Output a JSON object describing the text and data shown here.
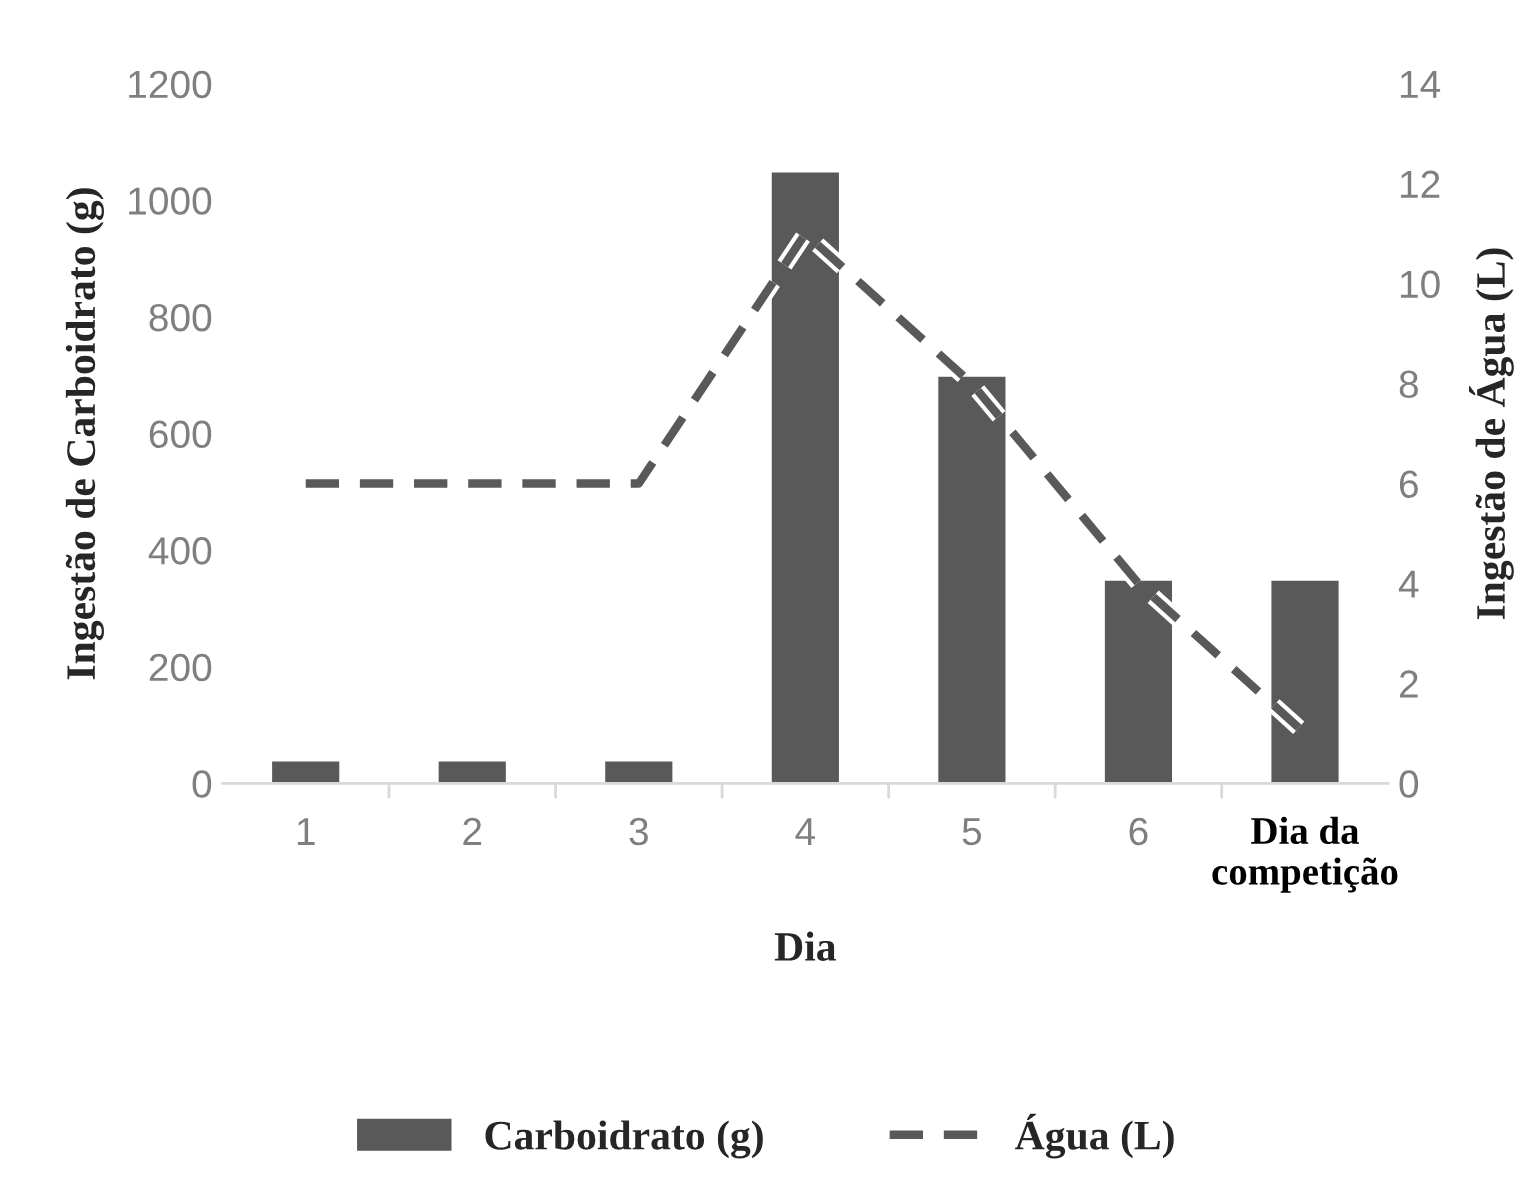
{
  "chart_data": {
    "type": "bar",
    "xlabel": "Dia",
    "ylabel": "Ingestão de Carboidrato (g)",
    "y2label": "Ingestão de Água (L)",
    "categories": [
      "1",
      "2",
      "3",
      "4",
      "5",
      "6",
      "Dia da\ncompetição"
    ],
    "series": [
      {
        "name": "Carboidrato (g)",
        "color": "#595959",
        "values": [
          40,
          40,
          40,
          1050,
          700,
          350,
          350
        ]
      },
      {
        "name": "Água (L)",
        "type": "line",
        "axis": "y2",
        "color": "#595959",
        "line_style": "dashed",
        "values": [
          6,
          6,
          6,
          11,
          8,
          4,
          1
        ]
      }
    ],
    "ylim": [
      0,
      1200
    ],
    "yticks": [
      0,
      200,
      400,
      600,
      800,
      1000,
      1200
    ],
    "y2lim": [
      0,
      14
    ],
    "y2ticks": [
      0,
      2,
      4,
      6,
      8,
      10,
      12,
      14
    ],
    "grid": false,
    "legend": "bottom"
  }
}
